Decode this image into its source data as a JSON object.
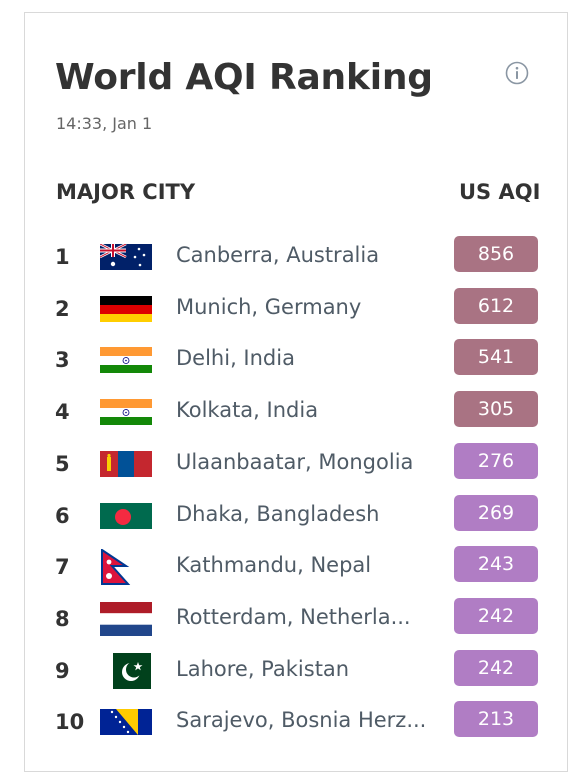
{
  "header": {
    "title": "World AQI Ranking",
    "timestamp": "14:33, Jan 1"
  },
  "columns": {
    "city": "MAJOR CITY",
    "aqi": "US AQI"
  },
  "colors": {
    "hazardous": "#a97383",
    "very_unhealthy": "#b07dc4"
  },
  "rankings": [
    {
      "rank": "1",
      "city": "Canberra, Australia",
      "aqi": "856",
      "flag": "australia-flag",
      "level": "hazardous"
    },
    {
      "rank": "2",
      "city": "Munich, Germany",
      "aqi": "612",
      "flag": "germany-flag",
      "level": "hazardous"
    },
    {
      "rank": "3",
      "city": "Delhi, India",
      "aqi": "541",
      "flag": "india-flag",
      "level": "hazardous"
    },
    {
      "rank": "4",
      "city": "Kolkata, India",
      "aqi": "305",
      "flag": "india-flag",
      "level": "hazardous"
    },
    {
      "rank": "5",
      "city": "Ulaanbaatar, Mongolia",
      "aqi": "276",
      "flag": "mongolia-flag",
      "level": "very-unhealthy"
    },
    {
      "rank": "6",
      "city": "Dhaka, Bangladesh",
      "aqi": "269",
      "flag": "bangladesh-flag",
      "level": "very-unhealthy"
    },
    {
      "rank": "7",
      "city": "Kathmandu, Nepal",
      "aqi": "243",
      "flag": "nepal-flag",
      "level": "very-unhealthy"
    },
    {
      "rank": "8",
      "city": "Rotterdam, Netherla...",
      "aqi": "242",
      "flag": "netherlands-flag",
      "level": "very-unhealthy"
    },
    {
      "rank": "9",
      "city": "Lahore, Pakistan",
      "aqi": "242",
      "flag": "pakistan-flag",
      "level": "very-unhealthy"
    },
    {
      "rank": "10",
      "city": "Sarajevo, Bosnia Herz...",
      "aqi": "213",
      "flag": "bosnia-flag",
      "level": "very-unhealthy"
    }
  ]
}
